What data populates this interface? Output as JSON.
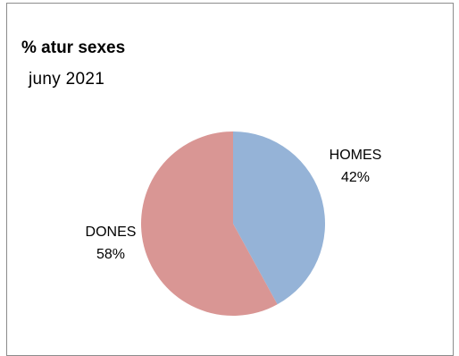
{
  "chart_data": {
    "type": "pie",
    "title": "% atur sexes",
    "subtitle": "juny 2021",
    "slices": [
      {
        "name": "HOMES",
        "percent_label": "42%",
        "value": 42,
        "color": "#95b3d7"
      },
      {
        "name": "DONES",
        "percent_label": "58%",
        "value": 58,
        "color": "#d99694"
      }
    ]
  }
}
